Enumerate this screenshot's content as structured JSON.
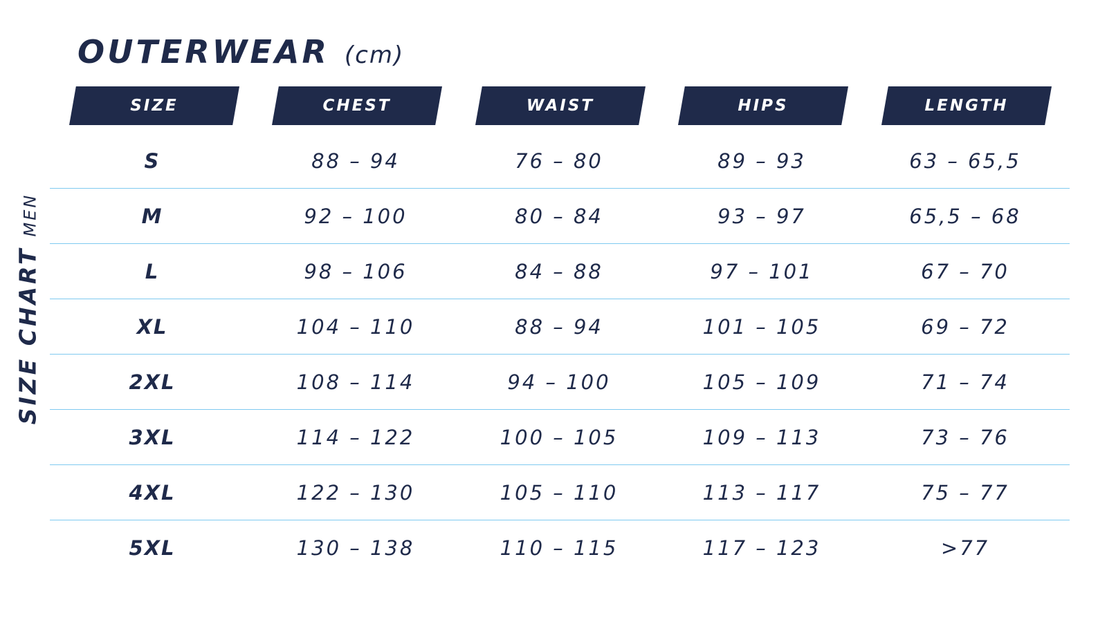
{
  "title": {
    "main": "OUTERWEAR",
    "unit": "(cm)"
  },
  "side_label": {
    "main": "SIZE CHART",
    "sub": "MEN"
  },
  "columns": [
    "SIZE",
    "CHEST",
    "WAIST",
    "HIPS",
    "LENGTH"
  ],
  "rows": [
    [
      "S",
      "88 – 94",
      "76 – 80",
      "89 – 93",
      "63 – 65,5"
    ],
    [
      "M",
      "92 – 100",
      "80 – 84",
      "93 – 97",
      "65,5 – 68"
    ],
    [
      "L",
      "98 – 106",
      "84 – 88",
      "97 – 101",
      "67 – 70"
    ],
    [
      "XL",
      "104 – 110",
      "88 – 94",
      "101 – 105",
      "69 – 72"
    ],
    [
      "2XL",
      "108 – 114",
      "94 – 100",
      "105 – 109",
      "71 – 74"
    ],
    [
      "3XL",
      "114 – 122",
      "100 – 105",
      "109 – 113",
      "73 – 76"
    ],
    [
      "4XL",
      "122 – 130",
      "105 – 110",
      "113 – 117",
      "75 – 77"
    ],
    [
      "5XL",
      "130 – 138",
      "110 – 115",
      "117 – 123",
      ">77"
    ]
  ],
  "colors": {
    "navy": "#1f2a4a",
    "divider": "#7fcaf0",
    "header_text": "#ffffff"
  }
}
